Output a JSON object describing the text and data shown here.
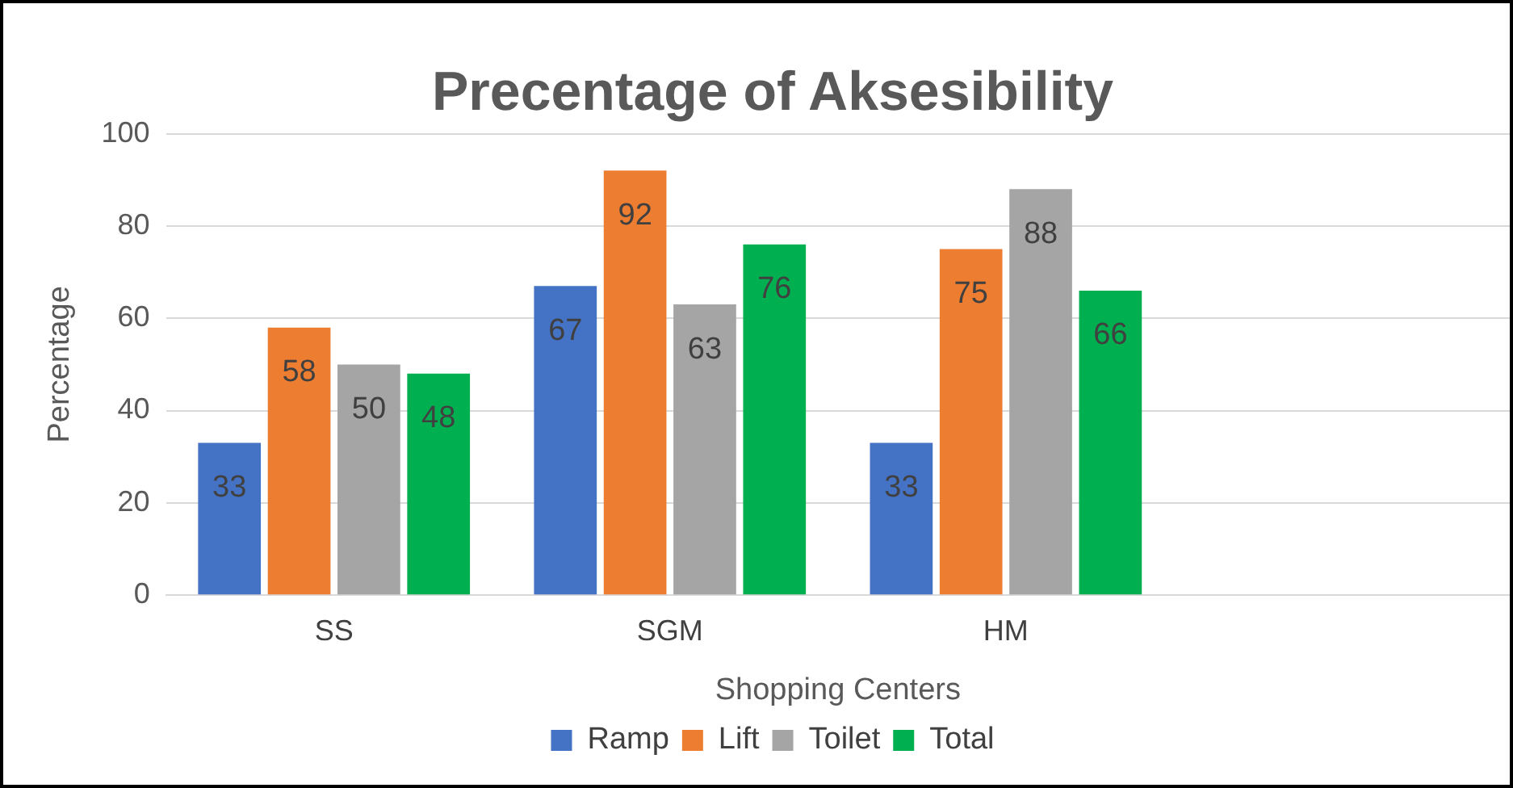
{
  "chart_data": {
    "type": "bar",
    "title": "Precentage of Aksesibility",
    "xlabel": "Shopping Centers",
    "ylabel": "Percentage",
    "categories": [
      "SS",
      "SGM",
      "HM",
      null
    ],
    "series": [
      {
        "name": "Ramp",
        "color": "#4472c4",
        "values": [
          33,
          67,
          33,
          null
        ]
      },
      {
        "name": "Lift",
        "color": "#ed7d31",
        "values": [
          58,
          92,
          75,
          null
        ]
      },
      {
        "name": "Toilet",
        "color": "#a5a5a5",
        "values": [
          50,
          63,
          88,
          null
        ]
      },
      {
        "name": "Total",
        "color": "#00b050",
        "values": [
          48,
          76,
          66,
          null
        ]
      }
    ],
    "ylim": [
      0,
      100
    ],
    "yticks": [
      0,
      20,
      40,
      60,
      80,
      100
    ],
    "grid": "y",
    "legend": "bottom",
    "data_labels": true
  }
}
